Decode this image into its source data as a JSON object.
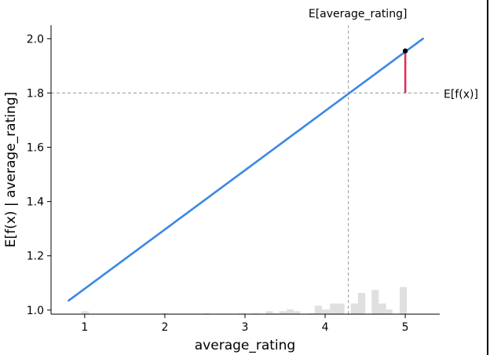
{
  "chart_data": {
    "type": "line",
    "title": "",
    "xlabel": "average_rating",
    "ylabel": "E[f(x) | average_rating]",
    "xlim": [
      0.58,
      5.43
    ],
    "ylim": [
      0.985,
      2.05
    ],
    "xticks": [
      1,
      2,
      3,
      4,
      5
    ],
    "yticks": [
      1.0,
      1.2,
      1.4,
      1.6,
      1.8,
      2.0
    ],
    "xtick_labels": [
      "1",
      "2",
      "3",
      "4",
      "5"
    ],
    "ytick_labels": [
      "1.0",
      "1.2",
      "1.4",
      "1.6",
      "1.8",
      "2.0"
    ],
    "grid": false,
    "series": [
      {
        "x": [
          0.8,
          5.22
        ],
        "y": [
          1.035,
          2.0
        ],
        "color": "#3b88e6"
      }
    ],
    "expected_value": {
      "x": 4.29,
      "y": 1.8,
      "x_label": "E[average_rating]",
      "y_label": "E[f(x)]",
      "color": "#999999"
    },
    "highlight": {
      "x": 5.0,
      "y_from": 1.8,
      "y_to": 1.955,
      "bar_color": "#e0305a",
      "point_color": "#000000"
    },
    "histogram": {
      "color": "#e0e0e0",
      "bars": [
        {
          "x0": 0.96,
          "x1": 1.05,
          "h": 0.14
        },
        {
          "x0": 1.96,
          "x1": 2.04,
          "h": 0.04
        },
        {
          "x0": 2.48,
          "x1": 2.56,
          "h": 0.04
        },
        {
          "x0": 2.91,
          "x1": 3.0,
          "h": 0.04
        },
        {
          "x0": 3.09,
          "x1": 3.17,
          "h": 0.04
        },
        {
          "x0": 3.26,
          "x1": 3.35,
          "h": 0.14
        },
        {
          "x0": 3.35,
          "x1": 3.43,
          "h": 0.04
        },
        {
          "x0": 3.43,
          "x1": 3.52,
          "h": 0.14
        },
        {
          "x0": 3.52,
          "x1": 3.61,
          "h": 0.22
        },
        {
          "x0": 3.61,
          "x1": 3.69,
          "h": 0.14
        },
        {
          "x0": 3.78,
          "x1": 3.87,
          "h": 0.04
        },
        {
          "x0": 3.87,
          "x1": 3.96,
          "h": 0.4
        },
        {
          "x0": 3.96,
          "x1": 4.06,
          "h": 0.22
        },
        {
          "x0": 4.06,
          "x1": 4.24,
          "h": 0.5
        },
        {
          "x0": 4.32,
          "x1": 4.41,
          "h": 0.5
        },
        {
          "x0": 4.41,
          "x1": 4.5,
          "h": 1.0
        },
        {
          "x0": 4.58,
          "x1": 4.67,
          "h": 1.14
        },
        {
          "x0": 4.67,
          "x1": 4.76,
          "h": 0.5
        },
        {
          "x0": 4.76,
          "x1": 4.84,
          "h": 0.22
        },
        {
          "x0": 4.93,
          "x1": 5.02,
          "h": 1.28
        }
      ]
    }
  }
}
